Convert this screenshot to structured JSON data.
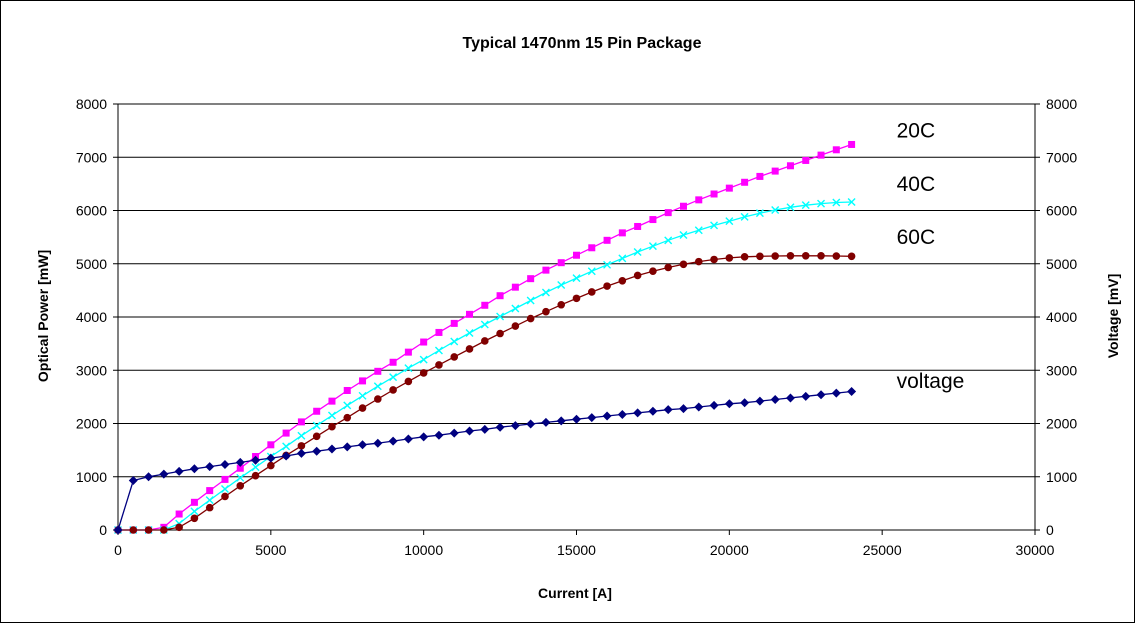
{
  "chart_data": {
    "type": "line",
    "title": "Typical 1470nm 15 Pin Package",
    "xlabel": "Current [A]",
    "ylabel": "Optical Power [mW]",
    "y2label": "Voltage [mV]",
    "xlim": [
      0,
      30000
    ],
    "ylim": [
      0,
      8000
    ],
    "y2lim": [
      0,
      8000
    ],
    "xticks": [
      0,
      5000,
      10000,
      15000,
      20000,
      25000,
      30000
    ],
    "yticks": [
      0,
      1000,
      2000,
      3000,
      4000,
      5000,
      6000,
      7000,
      8000
    ],
    "grid": "horizontal major",
    "legend": "none",
    "series": [
      {
        "name": "20C",
        "color": "#ff00ff",
        "marker": "square",
        "x": [
          0,
          500,
          1000,
          1500,
          2000,
          2500,
          3000,
          3500,
          4000,
          4500,
          5000,
          5500,
          6000,
          6500,
          7000,
          7500,
          8000,
          8500,
          9000,
          9500,
          10000,
          10500,
          11000,
          11500,
          12000,
          12500,
          13000,
          13500,
          14000,
          14500,
          15000,
          15500,
          16000,
          16500,
          17000,
          17500,
          18000,
          18500,
          19000,
          19500,
          20000,
          20500,
          21000,
          21500,
          22000,
          22500,
          23000,
          23500,
          24000
        ],
        "y": [
          0,
          0,
          0,
          50,
          300,
          520,
          740,
          950,
          1160,
          1380,
          1600,
          1820,
          2030,
          2230,
          2420,
          2620,
          2800,
          2980,
          3150,
          3340,
          3530,
          3710,
          3880,
          4050,
          4220,
          4400,
          4560,
          4720,
          4880,
          5020,
          5160,
          5300,
          5440,
          5580,
          5700,
          5830,
          5960,
          6080,
          6200,
          6310,
          6420,
          6530,
          6640,
          6740,
          6840,
          6940,
          7040,
          7140,
          7240
        ]
      },
      {
        "name": "40C",
        "color": "#00ffff",
        "marker": "x",
        "x": [
          0,
          500,
          1000,
          1500,
          2000,
          2500,
          3000,
          3500,
          4000,
          4500,
          5000,
          5500,
          6000,
          6500,
          7000,
          7500,
          8000,
          8500,
          9000,
          9500,
          10000,
          10500,
          11000,
          11500,
          12000,
          12500,
          13000,
          13500,
          14000,
          14500,
          15000,
          15500,
          16000,
          16500,
          17000,
          17500,
          18000,
          18500,
          19000,
          19500,
          20000,
          20500,
          21000,
          21500,
          22000,
          22500,
          23000,
          23500,
          24000
        ],
        "y": [
          0,
          0,
          0,
          0,
          120,
          350,
          560,
          770,
          980,
          1180,
          1380,
          1570,
          1770,
          1960,
          2150,
          2340,
          2520,
          2700,
          2870,
          3040,
          3200,
          3370,
          3540,
          3700,
          3860,
          4010,
          4160,
          4310,
          4460,
          4600,
          4730,
          4860,
          4980,
          5100,
          5220,
          5330,
          5440,
          5540,
          5630,
          5720,
          5800,
          5880,
          5950,
          6010,
          6060,
          6100,
          6130,
          6150,
          6160
        ]
      },
      {
        "name": "60C",
        "color": "#800000",
        "marker": "circle",
        "x": [
          0,
          500,
          1000,
          1500,
          2000,
          2500,
          3000,
          3500,
          4000,
          4500,
          5000,
          5500,
          6000,
          6500,
          7000,
          7500,
          8000,
          8500,
          9000,
          9500,
          10000,
          10500,
          11000,
          11500,
          12000,
          12500,
          13000,
          13500,
          14000,
          14500,
          15000,
          15500,
          16000,
          16500,
          17000,
          17500,
          18000,
          18500,
          19000,
          19500,
          20000,
          20500,
          21000,
          21500,
          22000,
          22500,
          23000,
          23500,
          24000
        ],
        "y": [
          0,
          0,
          0,
          0,
          50,
          220,
          420,
          630,
          830,
          1020,
          1210,
          1400,
          1580,
          1760,
          1940,
          2110,
          2290,
          2460,
          2630,
          2790,
          2950,
          3100,
          3250,
          3400,
          3550,
          3690,
          3830,
          3970,
          4100,
          4230,
          4350,
          4470,
          4580,
          4680,
          4780,
          4860,
          4930,
          4990,
          5040,
          5080,
          5110,
          5130,
          5140,
          5145,
          5150,
          5150,
          5150,
          5145,
          5140
        ]
      },
      {
        "name": "voltage",
        "color": "#000080",
        "marker": "diamond",
        "x": [
          0,
          500,
          1000,
          1500,
          2000,
          2500,
          3000,
          3500,
          4000,
          4500,
          5000,
          5500,
          6000,
          6500,
          7000,
          7500,
          8000,
          8500,
          9000,
          9500,
          10000,
          10500,
          11000,
          11500,
          12000,
          12500,
          13000,
          13500,
          14000,
          14500,
          15000,
          15500,
          16000,
          16500,
          17000,
          17500,
          18000,
          18500,
          19000,
          19500,
          20000,
          20500,
          21000,
          21500,
          22000,
          22500,
          23000,
          23500,
          24000
        ],
        "y": [
          0,
          930,
          1000,
          1050,
          1100,
          1150,
          1190,
          1230,
          1270,
          1310,
          1350,
          1390,
          1440,
          1480,
          1520,
          1560,
          1600,
          1630,
          1670,
          1710,
          1750,
          1780,
          1820,
          1860,
          1890,
          1930,
          1960,
          1990,
          2020,
          2050,
          2080,
          2110,
          2140,
          2170,
          2200,
          2230,
          2260,
          2280,
          2310,
          2340,
          2370,
          2390,
          2420,
          2450,
          2480,
          2510,
          2540,
          2570,
          2600
        ]
      }
    ],
    "series_labels": [
      {
        "text": "20C",
        "series": "20C",
        "x": 24000,
        "y": 7500
      },
      {
        "text": "40C",
        "series": "40C",
        "x": 24000,
        "y": 6500
      },
      {
        "text": "60C",
        "series": "60C",
        "x": 24000,
        "y": 5500
      },
      {
        "text": "voltage",
        "series": "voltage",
        "x": 24000,
        "y": 2800
      }
    ]
  }
}
